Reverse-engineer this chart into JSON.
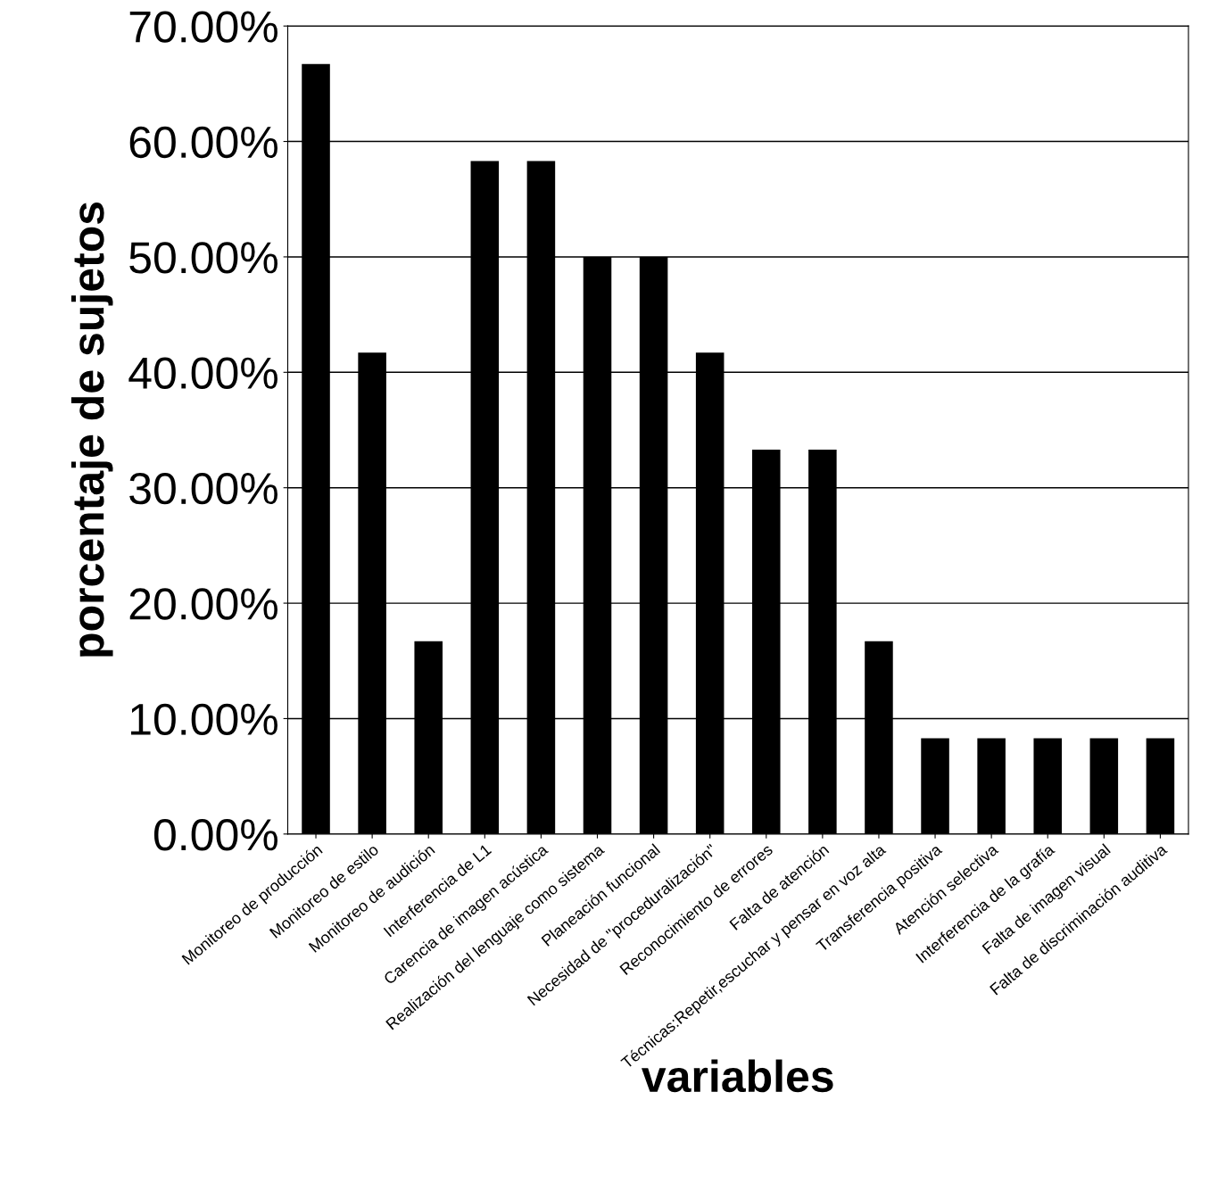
{
  "chart_data": {
    "type": "bar",
    "xlabel": "variables",
    "ylabel": "porcentaje de sujetos",
    "categories": [
      "Monitoreo de producción",
      "Monitoreo de estilo",
      "Monitoreo de audición",
      "Interferencia de L1",
      "Carencia de imagen acústica",
      "Realización del lenguaje como sistema",
      "Planeación funcional",
      "Necesidad de \"proceduralización\"",
      "Reconocimiento de errores",
      "Falta de atención",
      "Técnicas:Repetir,escuchar y pensar en voz alta",
      "Transferencia positiva",
      "Atención selectiva",
      "Interferencia de la grafía",
      "Falta de imagen visual",
      "Falta de discriminación auditiva"
    ],
    "values": [
      66.7,
      41.7,
      16.7,
      58.3,
      58.3,
      50,
      50,
      41.7,
      33.3,
      33.3,
      16.7,
      8.3,
      8.3,
      8.3,
      8.3,
      8.3
    ],
    "color": "#000000",
    "ylim": [
      0,
      70
    ],
    "yticks": [
      {
        "value": 0,
        "label": "0.00%"
      },
      {
        "value": 10,
        "label": "10.00%"
      },
      {
        "value": 20,
        "label": "20.00%"
      },
      {
        "value": 30,
        "label": "30.00%"
      },
      {
        "value": 40,
        "label": "40.00%"
      },
      {
        "value": 50,
        "label": "50.00%"
      },
      {
        "value": 60,
        "label": "60.00%"
      },
      {
        "value": 70,
        "label": "70.00%"
      }
    ],
    "grid": "y",
    "legend": false
  }
}
